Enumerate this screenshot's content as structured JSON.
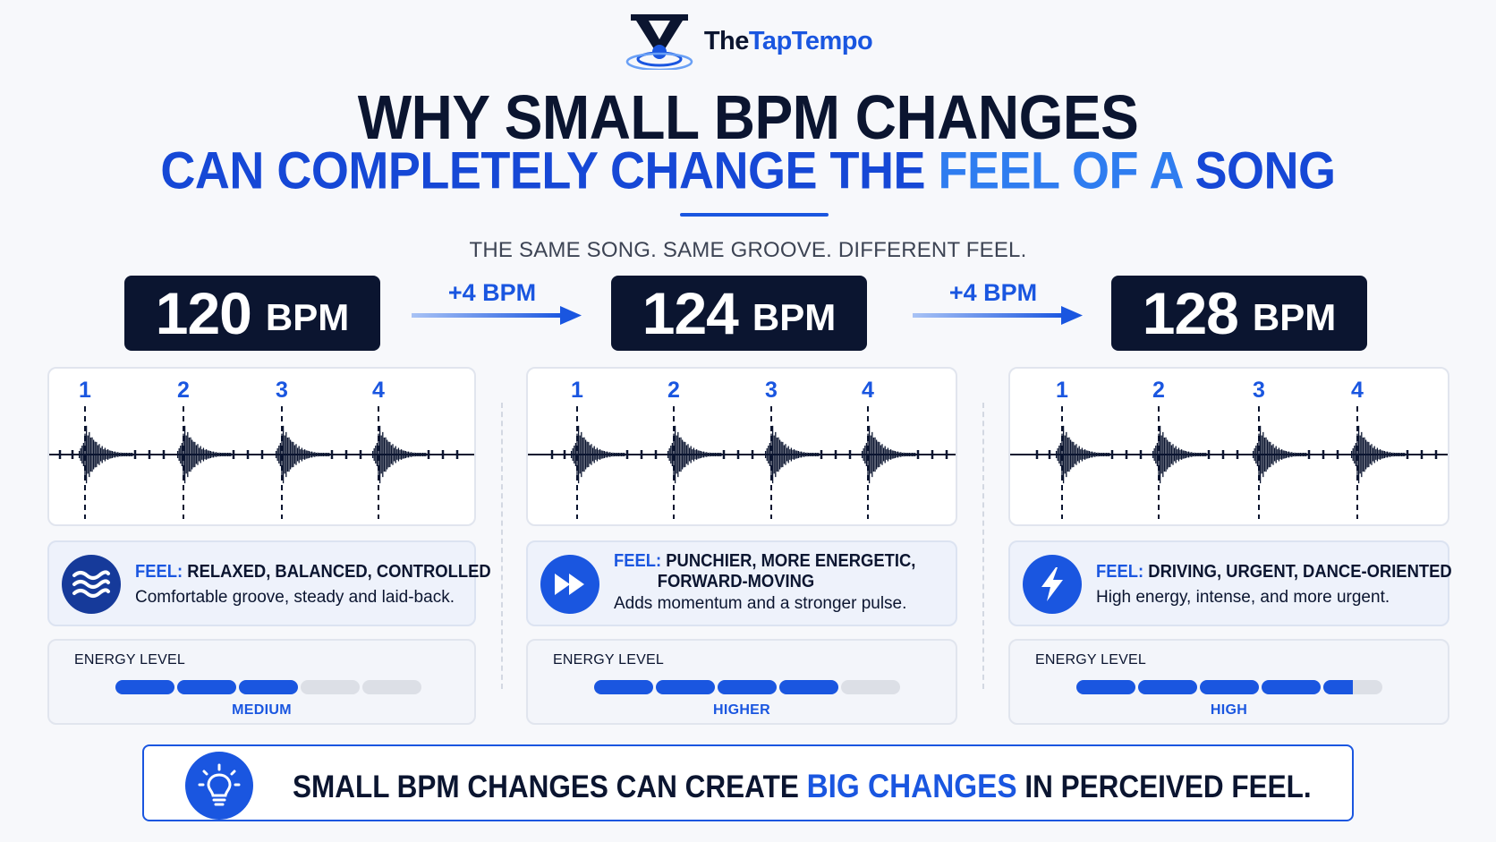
{
  "brand": {
    "name_part1": "The",
    "name_part2": "TapTempo"
  },
  "title": {
    "line1": "WHY SMALL BPM CHANGES",
    "line2_part1": "CAN COMPLETELY CHANGE THE ",
    "line2_part2": "FEEL OF A",
    "line2_part3": " SONG"
  },
  "subtitle": "THE SAME SONG. SAME GROOVE. DIFFERENT FEEL.",
  "tempos": [
    {
      "value": "120",
      "unit": "BPM"
    },
    {
      "value": "124",
      "unit": "BPM"
    },
    {
      "value": "128",
      "unit": "BPM"
    }
  ],
  "steps": [
    "+4 BPM",
    "+4 BPM"
  ],
  "beats": [
    "1",
    "2",
    "3",
    "4"
  ],
  "feels": [
    {
      "key": "FEEL:",
      "head": "RELAXED, BALANCED, CONTROLLED",
      "head2": "",
      "desc": "Comfortable groove, steady and laid-back.",
      "icon": "waves-icon"
    },
    {
      "key": "FEEL:",
      "head": "PUNCHIER, MORE ENERGETIC,",
      "head2": "FORWARD-MOVING",
      "desc": "Adds momentum and a stronger pulse.",
      "icon": "fast-forward-icon"
    },
    {
      "key": "FEEL:",
      "head": "DRIVING, URGENT, DANCE-ORIENTED",
      "head2": "",
      "desc": "High energy, intense, and more urgent.",
      "icon": "lightning-icon"
    }
  ],
  "energy": [
    {
      "title": "ENERGY LEVEL",
      "level_label": "MEDIUM",
      "filled": 3,
      "total": 5
    },
    {
      "title": "ENERGY LEVEL",
      "level_label": "HIGHER",
      "filled": 4,
      "total": 5
    },
    {
      "title": "ENERGY LEVEL",
      "level_label": "HIGH",
      "filled": 4.5,
      "total": 5
    }
  ],
  "banner": {
    "part1": "SMALL BPM CHANGES CAN CREATE ",
    "part2": "BIG CHANGES",
    "part3": " IN PERCEIVED FEEL.",
    "icon": "lightbulb-icon"
  },
  "colors": {
    "navy": "#0b1530",
    "accent": "#1a56e0",
    "accent_light": "#2f7df0"
  }
}
